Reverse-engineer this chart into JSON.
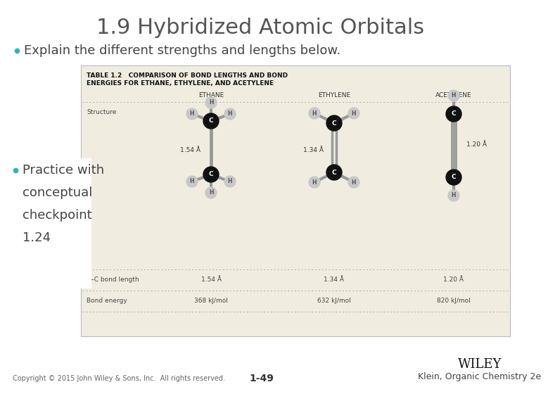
{
  "title": "1.9 Hybridized Atomic Orbitals",
  "title_color": "#555555",
  "title_fontsize": 22,
  "bullet1": "Explain the different strengths and lengths below.",
  "bullet1_color": "#444444",
  "bullet1_fontsize": 13,
  "bullet_dot_color": "#2ab5b5",
  "bullet2_lines": [
    "Practice with",
    "conceptual",
    "checkpoint",
    "1.24"
  ],
  "bullet2_color": "#444444",
  "bullet2_fontsize": 13,
  "table_bg": "#f0ede0",
  "table_border_color": "#bbbbbb",
  "table_title_part1": "TABLE 1.2   COMPARISON OF BOND LENGTHS AND BOND",
  "table_title_part2": "ENERGIES FOR ETHANE, ETHYLENE, AND ACETYLENE",
  "table_title_fontsize": 6.5,
  "col_headers": [
    "ETHANE",
    "ETHYLENE",
    "ACETYLENE"
  ],
  "col_header_fontsize": 6.5,
  "row1_label": "Structure",
  "row2_label": "C–C bond length",
  "row3_label": "Bond energy",
  "row2_vals": [
    "1.54 Å",
    "1.34 Å",
    "1.20 Å"
  ],
  "row3_vals": [
    "368 kJ/mol",
    "632 kJ/mol",
    "820 kJ/mol"
  ],
  "bond_lengths_in_structure": [
    "1.54 Å",
    "1.34 Å",
    "1.20 Å"
  ],
  "copyright": "Copyright © 2015 John Wiley & Sons, Inc.  All rights reserved.",
  "page_num": "1-49",
  "publisher": "WILEY",
  "author": "Klein, Organic Chemistry 2e",
  "bg_color": "#ffffff",
  "footer_fontsize": 7,
  "wiley_fontsize": 13,
  "author_fontsize": 9,
  "C_color": "#111111",
  "H_color": "#c8c8c8",
  "bond_color": "#999999"
}
